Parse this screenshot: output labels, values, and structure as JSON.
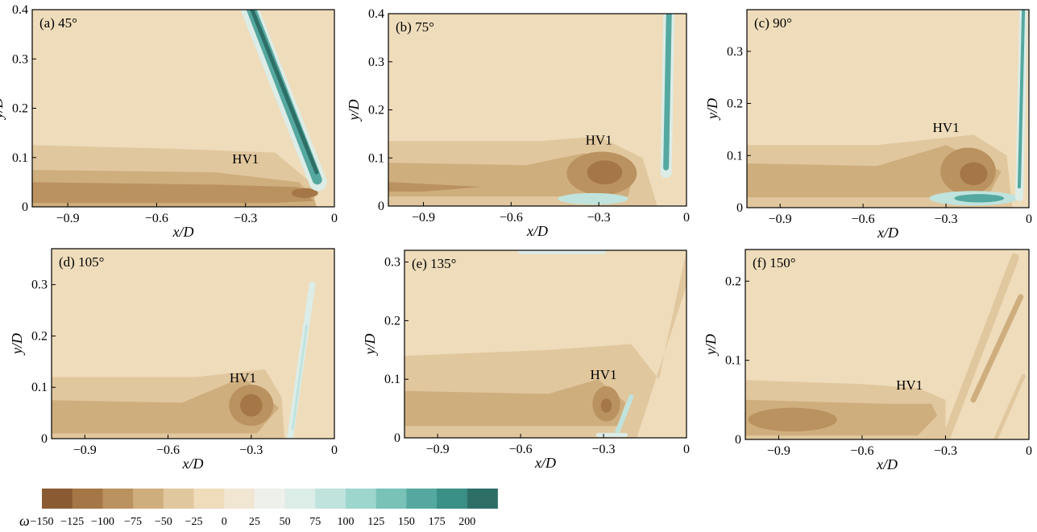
{
  "chart_data": {
    "type": "contour",
    "colorbar": {
      "symbol": "ω",
      "levels": [
        -150,
        -125,
        -100,
        -75,
        -50,
        -25,
        0,
        25,
        50,
        75,
        100,
        125,
        150,
        175,
        200
      ],
      "tick_labels": [
        "−150",
        "−125",
        "−100",
        "−75",
        "−50",
        "−25",
        "0",
        "25",
        "50",
        "75",
        "100",
        "125",
        "150",
        "175",
        "200"
      ],
      "colors": [
        "#8a5a33",
        "#a57646",
        "#ba925f",
        "#cfae7e",
        "#e1c79e",
        "#eedcbb",
        "#f1e6d2",
        "#eef0ec",
        "#dcece7",
        "#c0e3dd",
        "#9dd6cd",
        "#78c2b8",
        "#55a89f",
        "#3a8f86",
        "#2d6f67"
      ]
    },
    "panels": [
      {
        "id": "a",
        "label": "(a) 45°",
        "angle": 45,
        "xlabel": "x/D",
        "ylabel": "y/D",
        "xlim": [
          -1.02,
          0.0
        ],
        "ylim": [
          0,
          0.4
        ],
        "xticks": [
          -0.9,
          -0.6,
          -0.3,
          0
        ],
        "xtick_labels": [
          "−0.9",
          "−0.6",
          "−0.3",
          "0"
        ],
        "yticks": [
          0,
          0.1,
          0.2,
          0.3,
          0.4
        ],
        "ytick_labels": [
          "0",
          "0.1",
          "0.2",
          "0.3",
          "0.4"
        ],
        "annotations": [
          {
            "text": "HV1",
            "x": -0.3,
            "y": 0.088
          }
        ]
      },
      {
        "id": "b",
        "label": "(b) 75°",
        "angle": 75,
        "xlabel": "x/D",
        "ylabel": "y/D",
        "xlim": [
          -1.02,
          0.0
        ],
        "ylim": [
          0,
          0.4
        ],
        "xticks": [
          -0.9,
          -0.6,
          -0.3,
          0
        ],
        "xtick_labels": [
          "−0.9",
          "−0.6",
          "−0.3",
          "0"
        ],
        "yticks": [
          0,
          0.1,
          0.2,
          0.3,
          0.4
        ],
        "ytick_labels": [
          "0",
          "0.1",
          "0.2",
          "0.3",
          "0.4"
        ],
        "annotations": [
          {
            "text": "HV1",
            "x": -0.3,
            "y": 0.128
          }
        ]
      },
      {
        "id": "c",
        "label": "(c) 90°",
        "angle": 90,
        "xlabel": "x/D",
        "ylabel": "y/D",
        "xlim": [
          -1.02,
          0.0
        ],
        "ylim": [
          0,
          0.38
        ],
        "xticks": [
          -0.9,
          -0.6,
          -0.3,
          0
        ],
        "xtick_labels": [
          "−0.9",
          "−0.6",
          "−0.3",
          "0"
        ],
        "yticks": [
          0,
          0.1,
          0.2,
          0.3
        ],
        "ytick_labels": [
          "0",
          "0.1",
          "0.2",
          "0.3"
        ],
        "annotations": [
          {
            "text": "HV1",
            "x": -0.3,
            "y": 0.145
          }
        ]
      },
      {
        "id": "d",
        "label": "(d) 105°",
        "angle": 105,
        "xlabel": "x/D",
        "ylabel": "y/D",
        "xlim": [
          -1.02,
          0.0
        ],
        "ylim": [
          0,
          0.37
        ],
        "xticks": [
          -0.9,
          -0.6,
          -0.3,
          0
        ],
        "xtick_labels": [
          "−0.9",
          "−0.6",
          "−0.3",
          "0"
        ],
        "yticks": [
          0,
          0.1,
          0.2,
          0.3
        ],
        "ytick_labels": [
          "0",
          "0.1",
          "0.2",
          "0.3"
        ],
        "annotations": [
          {
            "text": "HV1",
            "x": -0.33,
            "y": 0.11
          }
        ]
      },
      {
        "id": "e",
        "label": "(e) 135°",
        "angle": 135,
        "xlabel": "x/D",
        "ylabel": "y/D",
        "xlim": [
          -1.02,
          0.0
        ],
        "ylim": [
          0,
          0.32
        ],
        "xticks": [
          -0.9,
          -0.6,
          -0.3,
          0
        ],
        "xtick_labels": [
          "−0.9",
          "−0.6",
          "−0.3",
          "0"
        ],
        "yticks": [
          0,
          0.1,
          0.2,
          0.3
        ],
        "ytick_labels": [
          "0",
          "0.1",
          "0.2",
          "0.3"
        ],
        "annotations": [
          {
            "text": "HV1",
            "x": -0.3,
            "y": 0.1
          }
        ]
      },
      {
        "id": "f",
        "label": "(f) 150°",
        "angle": 150,
        "xlabel": "x/D",
        "ylabel": "y/D",
        "xlim": [
          -1.02,
          0.0
        ],
        "ylim": [
          0,
          0.24
        ],
        "xticks": [
          -0.9,
          -0.6,
          -0.3,
          0
        ],
        "xtick_labels": [
          "−0.9",
          "−0.6",
          "−0.3",
          "0"
        ],
        "yticks": [
          0,
          0.1,
          0.2
        ],
        "ytick_labels": [
          "0",
          "0.1",
          "0.2"
        ],
        "annotations": [
          {
            "text": "HV1",
            "x": -0.43,
            "y": 0.063
          }
        ]
      }
    ]
  }
}
